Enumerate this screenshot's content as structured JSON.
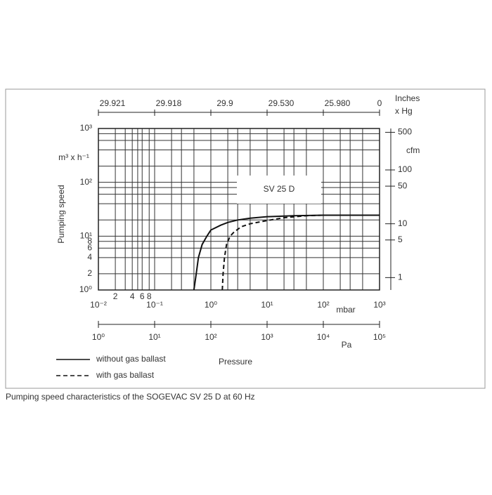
{
  "chart_data": {
    "type": "line",
    "log_x": true,
    "log_y": true,
    "grid": true,
    "ylabel": "Pumping speed",
    "yunit": "m³ x h⁻¹",
    "xunit": "mbar",
    "xlabel": "Pressure",
    "xlim": [
      0.01,
      1000
    ],
    "xticks": [
      {
        "value": 0.01,
        "label": "10⁻²"
      },
      {
        "value": 0.02,
        "label": "2"
      },
      {
        "value": 0.04,
        "label": "4"
      },
      {
        "value": 0.06,
        "label": "6"
      },
      {
        "value": 0.08,
        "label": "8"
      },
      {
        "value": 0.1,
        "label": "10⁻¹"
      },
      {
        "value": 1,
        "label": "10⁰"
      },
      {
        "value": 10,
        "label": "10¹"
      },
      {
        "value": 100,
        "label": "10²"
      },
      {
        "value": 1000,
        "label": "10³"
      }
    ],
    "xgrid": [
      0.03,
      0.05,
      0.2,
      0.3,
      0.5,
      2,
      3,
      5,
      20,
      30,
      50,
      200,
      300,
      500
    ],
    "ylim": [
      1,
      1000
    ],
    "yticks": [
      {
        "value": 1,
        "label": "10⁰"
      },
      2,
      4,
      6,
      8,
      {
        "value": 10,
        "label": "10¹"
      },
      {
        "value": 100,
        "label": "10²"
      },
      {
        "value": 1000,
        "label": "10³"
      }
    ],
    "ygrid": [
      20,
      40,
      60,
      80,
      200,
      400,
      600,
      800
    ],
    "top_axis": {
      "label": [
        "Inches",
        "x Hg"
      ],
      "ticks": [
        {
          "value": 0.01,
          "label": "29.921"
        },
        {
          "value": 0.1,
          "label": "29.918"
        },
        {
          "value": 1,
          "label": "29.9"
        },
        {
          "value": 10,
          "label": "29.530"
        },
        {
          "value": 100,
          "label": "25.980"
        },
        {
          "value": 1000,
          "label": "0"
        }
      ]
    },
    "pa_axis": {
      "label": "Pa",
      "lim": [
        1,
        100000
      ],
      "ticks": [
        {
          "value": 1,
          "label": "10⁰"
        },
        {
          "value": 10,
          "label": "10¹"
        },
        {
          "value": 100,
          "label": "10²"
        },
        {
          "value": 1000,
          "label": "10³"
        },
        {
          "value": 10000,
          "label": "10⁴"
        },
        {
          "value": 100000,
          "label": "10⁵"
        }
      ]
    },
    "y2label": "cfm",
    "y2lim": [
      0.5886,
      588.6
    ],
    "y2ticks": [
      1,
      5,
      10,
      50,
      100,
      500
    ],
    "annotation": "SV 25 D",
    "series": [
      {
        "name": "without gas ballast",
        "color": "#111111",
        "dash": false,
        "x": [
          0.5,
          0.55,
          0.6,
          0.7,
          0.85,
          1,
          1.5,
          2,
          3,
          5,
          10,
          30,
          100,
          300,
          1000
        ],
        "values": [
          1,
          2,
          4,
          7,
          10,
          13,
          16,
          18,
          20,
          21.5,
          23,
          24,
          24.5,
          24.5,
          24.5
        ]
      },
      {
        "name": "with gas ballast",
        "color": "#111111",
        "dash": true,
        "x": [
          1.6,
          1.65,
          1.75,
          1.9,
          2.2,
          2.6,
          3.5,
          5,
          10,
          20,
          50,
          100,
          1000
        ],
        "values": [
          1,
          2,
          4,
          7,
          10,
          12,
          15,
          17,
          19.5,
          22,
          24,
          24.5,
          24.5
        ]
      }
    ]
  },
  "caption": "Pumping speed characteristics of the SOGEVAC  SV 25 D at 60 Hz"
}
